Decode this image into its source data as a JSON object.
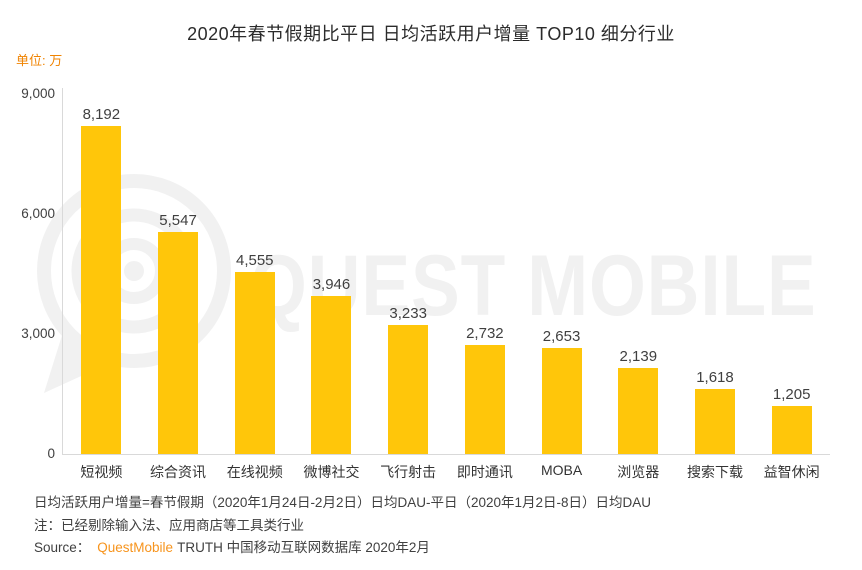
{
  "title": "2020年春节假期比平日 日均活跃用户增量 TOP10 细分行业",
  "unit_label": "单位: 万",
  "watermark": {
    "text": "QUEST MOBILE",
    "logo": "questmobile-q-logo"
  },
  "chart_data": {
    "type": "bar",
    "title": "2020年春节假期比平日 日均活跃用户增量 TOP10 细分行业",
    "categories": [
      "短视频",
      "综合资讯",
      "在线视频",
      "微博社交",
      "飞行射击",
      "即时通讯",
      "MOBA",
      "浏览器",
      "搜索下载",
      "益智休闲"
    ],
    "values": [
      8192,
      5547,
      4555,
      3946,
      3233,
      2732,
      2653,
      2139,
      1618,
      1205
    ],
    "value_labels": [
      "8,192",
      "5,547",
      "4,555",
      "3,946",
      "3,233",
      "2,732",
      "2,653",
      "2,139",
      "1,618",
      "1,205"
    ],
    "xlabel": "",
    "ylabel": "单位: 万",
    "ylim": [
      0,
      9000
    ],
    "yticks": [
      0,
      3000,
      6000,
      9000
    ],
    "ytick_labels": [
      "0",
      "3,000",
      "6,000",
      "9,000"
    ],
    "grid": false,
    "legend": false,
    "bar_color": "#FFC60A"
  },
  "footer": {
    "note1": "日均活跃用户增量=春节假期（2020年1月24日-2月2日）日均DAU-平日（2020年1月2日-8日）日均DAU",
    "note2": "注：已经剔除输入法、应用商店等工具类行业",
    "source_prefix": "Source：",
    "source_brand": "QuestMobile",
    "source_suffix": "TRUTH 中国移动互联网数据库 2020年2月"
  },
  "colors": {
    "bar": "#FFC60A",
    "orange": "#F7941D",
    "unit_orange": "#F08300",
    "title_text": "#2b2b2b",
    "body_text": "#404040",
    "axis_line": "#d9d9d9",
    "watermark": "#f1f1f1"
  }
}
